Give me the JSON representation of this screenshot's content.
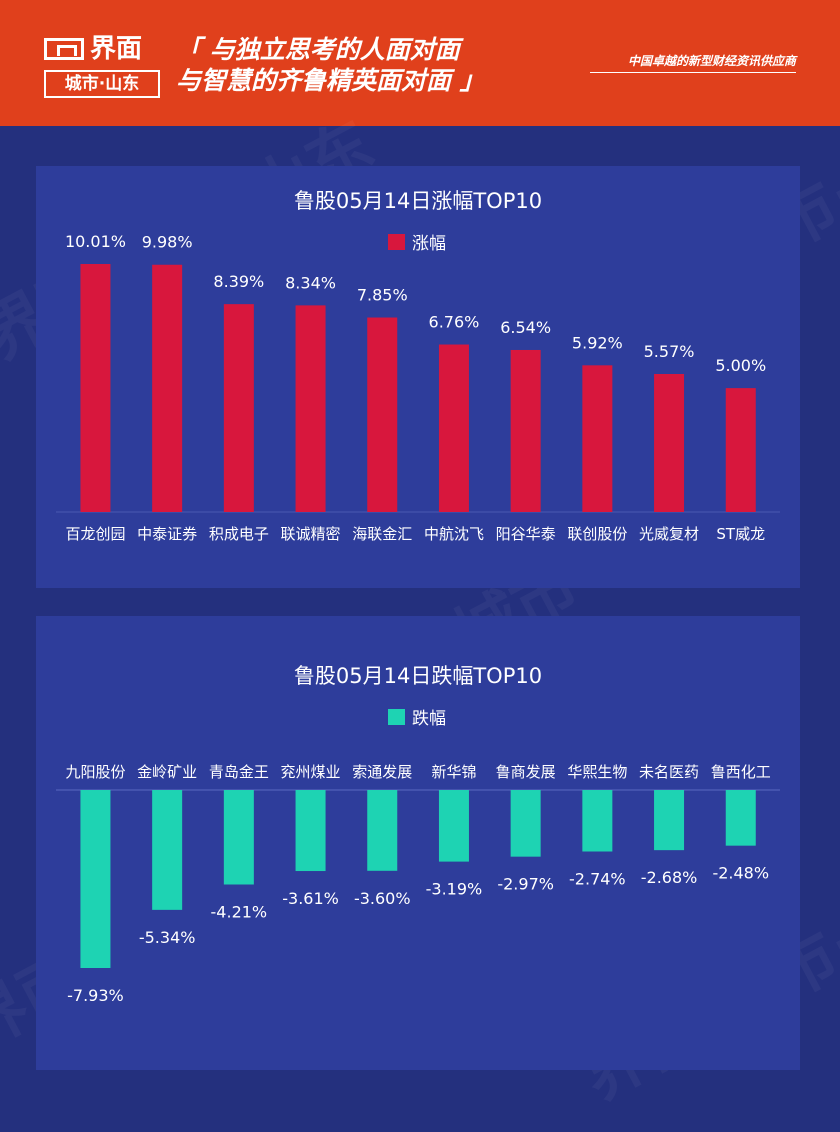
{
  "header": {
    "logo_main": "界面",
    "logo_sub": "城市·山东",
    "slogan_line1": "「 与独立思考的人面对面",
    "slogan_line2": "与智慧的齐鲁精英面对面 」",
    "tagline": "中国卓越的新型财经资讯供应商"
  },
  "watermark_text": "界面 城市·山东",
  "colors": {
    "header_bg": "#e0401c",
    "page_bg": "#24307e",
    "panel_bg": "#2e3d9b",
    "gain_bar": "#d8173d",
    "loss_bar": "#1ed3b3"
  },
  "chart_data": [
    {
      "type": "bar",
      "title": "鲁股05月14日涨幅TOP10",
      "legend": {
        "label": "涨幅",
        "position": "top-center"
      },
      "categories": [
        "百龙创园",
        "中泰证券",
        "积成电子",
        "联诚精密",
        "海联金汇",
        "中航沈飞",
        "阳谷华泰",
        "联创股份",
        "光威复材",
        "ST威龙"
      ],
      "series": [
        {
          "name": "涨幅",
          "values": [
            10.01,
            9.98,
            8.39,
            8.34,
            7.85,
            6.76,
            6.54,
            5.92,
            5.57,
            5.0
          ]
        }
      ],
      "data_labels": [
        "10.01%",
        "9.98%",
        "8.39%",
        "8.34%",
        "7.85%",
        "6.76%",
        "6.54%",
        "5.92%",
        "5.57%",
        "5.00%"
      ],
      "ylim": [
        0,
        10.01
      ],
      "grid": false
    },
    {
      "type": "bar",
      "title": "鲁股05月14日跌幅TOP10",
      "legend": {
        "label": "跌幅",
        "position": "top-center"
      },
      "categories": [
        "九阳股份",
        "金岭矿业",
        "青岛金王",
        "兖州煤业",
        "索通发展",
        "新华锦",
        "鲁商发展",
        "华熙生物",
        "未名医药",
        "鲁西化工"
      ],
      "series": [
        {
          "name": "跌幅",
          "values": [
            -7.93,
            -5.34,
            -4.21,
            -3.61,
            -3.6,
            -3.19,
            -2.97,
            -2.74,
            -2.68,
            -2.48
          ]
        }
      ],
      "data_labels": [
        "-7.93%",
        "-5.34%",
        "-4.21%",
        "-3.61%",
        "-3.60%",
        "-3.19%",
        "-2.97%",
        "-2.74%",
        "-2.68%",
        "-2.48%"
      ],
      "ylim": [
        -7.93,
        0
      ],
      "grid": false
    }
  ]
}
